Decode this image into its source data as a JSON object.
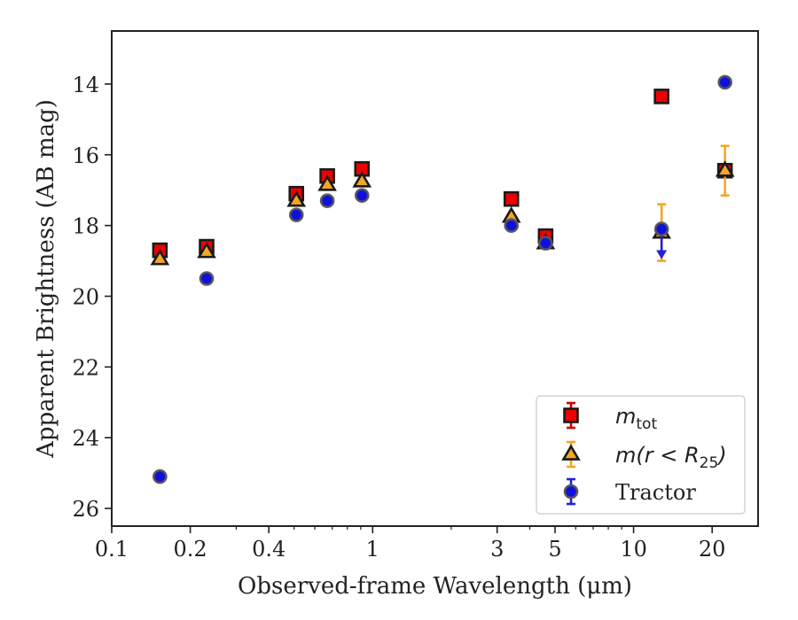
{
  "chart_data": {
    "type": "scatter",
    "title": "",
    "xlabel": "Observed-frame Wavelength (μm)",
    "ylabel": "Apparent Brightness (AB mag)",
    "xscale": "log",
    "xlim": [
      0.1,
      30
    ],
    "ylim": [
      26.5,
      12.5
    ],
    "y_inverted": true,
    "xticks": [
      0.1,
      0.2,
      0.4,
      1,
      3,
      5,
      10,
      20
    ],
    "xtick_labels": [
      "0.1",
      "0.2",
      "0.4",
      "1",
      "3",
      "5",
      "10",
      "20"
    ],
    "yticks": [
      14,
      16,
      18,
      20,
      22,
      24,
      26
    ],
    "ytick_labels": [
      "14",
      "16",
      "18",
      "20",
      "22",
      "24",
      "26"
    ],
    "grid": false,
    "legend_position": "lower-right",
    "series": [
      {
        "name": "m_tot",
        "legend_base": "m",
        "legend_sub": "tot",
        "marker": "square",
        "color": "#ee0000",
        "errcolor": "#cc0000",
        "points": [
          {
            "x": 0.153,
            "y": 18.7,
            "err": 0.1
          },
          {
            "x": 0.231,
            "y": 18.6,
            "err": 0.1
          },
          {
            "x": 0.51,
            "y": 17.1,
            "err": 0.05
          },
          {
            "x": 0.67,
            "y": 16.6,
            "err": 0.05
          },
          {
            "x": 0.91,
            "y": 16.4,
            "err": 0.05
          },
          {
            "x": 3.4,
            "y": 17.25,
            "err": 0.05
          },
          {
            "x": 4.6,
            "y": 18.3,
            "err": 0.05
          },
          {
            "x": 12.8,
            "y": 14.35,
            "err": 0.05
          },
          {
            "x": 22.4,
            "y": 16.45,
            "err": 0.05
          }
        ]
      },
      {
        "name": "m(r < R_25)",
        "legend_base": "m(r < R",
        "legend_sub": "25",
        "legend_end": ")",
        "marker": "triangle",
        "color": "#f5a623",
        "errcolor": "#f5a623",
        "points": [
          {
            "x": 0.153,
            "y": 18.95,
            "err": 0.05
          },
          {
            "x": 0.231,
            "y": 18.75,
            "err": 0.05
          },
          {
            "x": 0.51,
            "y": 17.3,
            "err": 0.05
          },
          {
            "x": 0.67,
            "y": 16.85,
            "err": 0.05
          },
          {
            "x": 0.91,
            "y": 16.75,
            "err": 0.05
          },
          {
            "x": 3.4,
            "y": 17.75,
            "err": 0.05
          },
          {
            "x": 4.6,
            "y": 18.5,
            "err": 0.05
          },
          {
            "x": 12.8,
            "y": 18.2,
            "err": 0.8
          },
          {
            "x": 22.4,
            "y": 16.45,
            "err": 0.7
          }
        ]
      },
      {
        "name": "Tractor",
        "legend_base": "Tractor",
        "marker": "circle",
        "color": "#1010dd",
        "errcolor": "#2020dd",
        "points": [
          {
            "x": 0.153,
            "y": 25.1,
            "err": 0.05
          },
          {
            "x": 0.231,
            "y": 19.5,
            "err": 0.05
          },
          {
            "x": 0.51,
            "y": 17.7,
            "err": 0.05
          },
          {
            "x": 0.67,
            "y": 17.3,
            "err": 0.05
          },
          {
            "x": 0.91,
            "y": 17.15,
            "err": 0.05
          },
          {
            "x": 3.4,
            "y": 18.0,
            "err": 0.05
          },
          {
            "x": 4.6,
            "y": 18.5,
            "err": 0.05
          },
          {
            "x": 12.8,
            "y": 18.1,
            "err": 0.05,
            "upper_limit_arrow_to": 18.9
          },
          {
            "x": 22.4,
            "y": 13.95,
            "err": 0.05
          }
        ]
      }
    ]
  }
}
